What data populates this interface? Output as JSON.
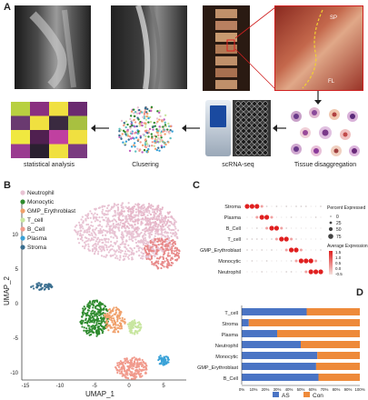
{
  "panel_labels": {
    "a": "A",
    "b": "B",
    "c": "C",
    "d": "D"
  },
  "panel_a": {
    "photo_labels": {
      "sp": "SP",
      "fl": "FL"
    },
    "captions": {
      "stats": "statistical analysis",
      "cluster": "Clusering",
      "scrna": "scRNA-seq",
      "tissue": "Tissue disaggregation"
    }
  },
  "colors": {
    "neutrophil": "#e8c3d3",
    "monocytic": "#2e8b2e",
    "gmp": "#f0a06a",
    "tcell": "#c8e6a0",
    "bcell": "#f19a8c",
    "plasma": "#3aa2d8",
    "stroma": "#3a6e8f",
    "as": "#4a74c4",
    "con": "#ee8a3a"
  },
  "umap": {
    "legend": [
      "Neutrophil",
      "Monocytic",
      "GMP_Erythroblast",
      "T_cell",
      "B_Cell",
      "Plasma",
      "Stroma"
    ],
    "xlabel": "UMAP_1",
    "ylabel": "UMAP_2",
    "xticks": [
      "-15",
      "-10",
      "-5",
      "0",
      "5"
    ],
    "yticks": [
      "10",
      "5",
      "0",
      "-5",
      "-10"
    ]
  },
  "chart_data": [
    {
      "type": "scatter",
      "subtype": "dotplot",
      "rows": [
        "Stroma",
        "Plasma",
        "B_Cell",
        "T_cell",
        "GMP_Erythroblast",
        "Monocytic",
        "Neutrophil"
      ],
      "legend_percent_title": "Percent Expressed",
      "legend_percent_values": [
        "0",
        "25",
        "50",
        "75"
      ],
      "legend_avg_title": "Average Expression",
      "legend_avg_values": [
        "1.5",
        "1.0",
        "0.5",
        "0.0",
        "-0.5"
      ]
    },
    {
      "type": "bar",
      "orientation": "horizontal",
      "stacked": true,
      "categories": [
        "T_cell",
        "Stroma",
        "Plasma",
        "Neutrophil",
        "Monocytic",
        "GMP_Erythroblast",
        "B_Cell"
      ],
      "series": [
        {
          "name": "AS",
          "values": [
            55,
            6,
            30,
            50,
            64,
            63,
            65
          ]
        },
        {
          "name": "Con",
          "values": [
            45,
            94,
            70,
            50,
            36,
            37,
            35
          ]
        }
      ],
      "xticks": [
        "0%",
        "10%",
        "20%",
        "30%",
        "40%",
        "50%",
        "60%",
        "70%",
        "80%",
        "90%",
        "100%"
      ],
      "xlim": [
        0,
        100
      ],
      "legend_position": "bottom"
    }
  ]
}
